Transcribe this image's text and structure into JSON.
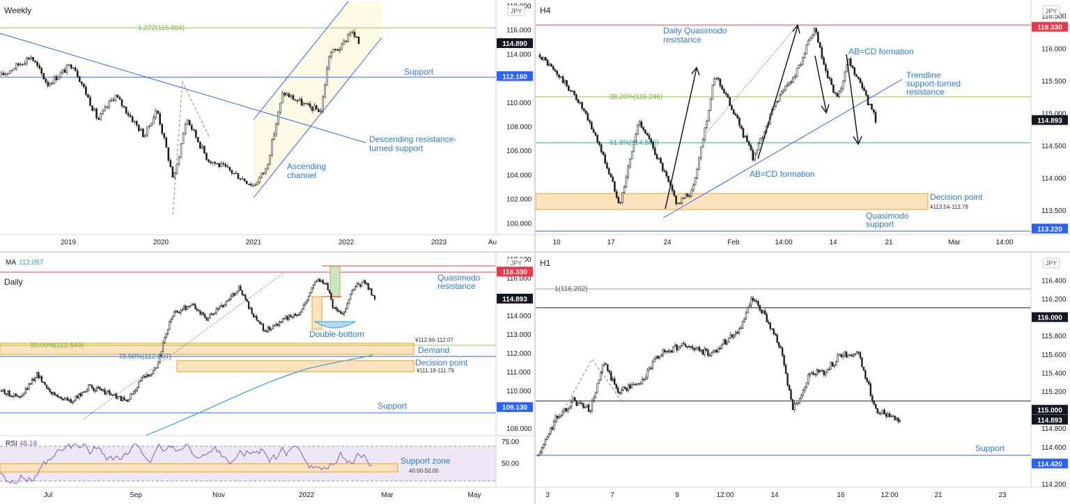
{
  "colors": {
    "candle_bull": "#ffffff",
    "candle_bear": "#1e1e1e",
    "wick": "#1e1e1e",
    "blue": "#2962ff",
    "label_blue": "#2b7bd0",
    "green_fib": "#8bc34a",
    "teal_fib": "#26a69a",
    "red": "#f23645",
    "zone_fill": "#fde3c0",
    "zone_stroke": "#f39c12",
    "channel_fill": "#fffbe6",
    "rsi_line": "#7e57c2",
    "rsi_fill": "#ede7f6",
    "price_tag_dark": "#131722"
  },
  "chart_data": [
    {
      "id": "weekly",
      "type": "candlestick",
      "title": "Weekly",
      "currency": "JPY",
      "x_ticks": [
        "2019",
        "2020",
        "2021",
        "2022",
        "2023",
        "Au"
      ],
      "y_ticks": [
        "118.000",
        "116.000",
        "114.000",
        "112.000",
        "110.000",
        "108.000",
        "106.000",
        "104.000",
        "102.000",
        "100.000"
      ],
      "ylim": [
        99.5,
        118.0
      ],
      "price_tags": [
        {
          "label": "114.890",
          "value": 114.89,
          "style": "dark"
        },
        {
          "label": "112.160",
          "value": 112.16,
          "style": "blue"
        }
      ],
      "levels": [
        {
          "label": "1.272(116.094)",
          "value": 116.094,
          "color": "green"
        },
        {
          "label": "Support",
          "value": 112.16,
          "color": "blue"
        }
      ],
      "annotations": [
        "Descending resistance-",
        "turned support",
        "Ascending",
        "channel"
      ],
      "series": {
        "start": 112.2,
        "end": 114.89,
        "points": [
          [
            0,
            112.2
          ],
          [
            14,
            113.8
          ],
          [
            22,
            111.5
          ],
          [
            34,
            113.2
          ],
          [
            46,
            108.5
          ],
          [
            54,
            110.6
          ],
          [
            68,
            107.2
          ],
          [
            74,
            109.4
          ],
          [
            82,
            103.5
          ],
          [
            88,
            108.7
          ],
          [
            98,
            105.3
          ],
          [
            108,
            104.4
          ],
          [
            120,
            103.1
          ],
          [
            126,
            104.5
          ],
          [
            134,
            110.8
          ],
          [
            146,
            109.6
          ],
          [
            152,
            109.3
          ],
          [
            156,
            114.0
          ],
          [
            162,
            114.6
          ],
          [
            166,
            115.9
          ],
          [
            170,
            114.9
          ]
        ]
      }
    },
    {
      "id": "h4",
      "type": "candlestick",
      "title": "H4",
      "currency": "JPY",
      "x_ticks": [
        "10",
        "17",
        "24",
        "Feb",
        "14:00",
        "14",
        "21",
        "Mar",
        "14:00"
      ],
      "y_ticks": [
        "116.500",
        "116.000",
        "115.500",
        "115.000",
        "114.500",
        "114.000",
        "113.500"
      ],
      "ylim": [
        113.17,
        116.55
      ],
      "price_tags": [
        {
          "label": "116.330",
          "value": 116.33,
          "style": "red"
        },
        {
          "label": "114.893",
          "value": 114.893,
          "style": "dark"
        },
        {
          "label": "113.220",
          "value": 113.22,
          "style": "blue"
        }
      ],
      "levels": [
        {
          "label": "38.20%(115.246)",
          "value": 115.246,
          "color": "green"
        },
        {
          "label": "61.8%(114.566)",
          "value": 114.566,
          "color": "teal"
        }
      ],
      "zone": {
        "label": "Decision point",
        "range_label": "¥113.54-113.78",
        "low": 113.54,
        "high": 113.78
      },
      "annotations": [
        "Daily Quasimodo",
        "resistance",
        "AB=CD formation",
        "AB=CD formation",
        "Trendline",
        "support-turned",
        "resistance",
        "Quasimodo",
        "support"
      ],
      "series": {
        "start": 115.9,
        "end": 114.893,
        "points": [
          [
            0,
            115.9
          ],
          [
            12,
            115.5
          ],
          [
            20,
            115.2
          ],
          [
            30,
            114.6
          ],
          [
            42,
            113.6
          ],
          [
            52,
            114.9
          ],
          [
            62,
            114.3
          ],
          [
            72,
            113.6
          ],
          [
            80,
            113.8
          ],
          [
            92,
            115.6
          ],
          [
            102,
            115.0
          ],
          [
            112,
            114.3
          ],
          [
            124,
            115.2
          ],
          [
            134,
            115.6
          ],
          [
            144,
            116.3
          ],
          [
            150,
            115.6
          ],
          [
            156,
            115.2
          ],
          [
            162,
            115.8
          ],
          [
            170,
            115.3
          ],
          [
            176,
            114.9
          ]
        ]
      }
    },
    {
      "id": "daily",
      "type": "candlestick",
      "title": "Daily",
      "currency": "JPY",
      "indicator_label": "MA",
      "indicator_value": "112.057",
      "x_ticks": [
        "Jul",
        "Sep",
        "Nov",
        "2022",
        "Mar",
        "May"
      ],
      "y_ticks": [
        "117.000",
        "116.000",
        "115.000",
        "114.000",
        "113.000",
        "112.000",
        "111.000",
        "110.000",
        "109.000",
        "108.000"
      ],
      "ylim": [
        107.75,
        117.0
      ],
      "price_tags": [
        {
          "label": "116.330",
          "value": 116.33,
          "style": "red"
        },
        {
          "label": "114.893",
          "value": 114.893,
          "style": "dark"
        },
        {
          "label": "109.130",
          "value": 109.13,
          "style": "blue"
        }
      ],
      "levels": [
        {
          "label": "50.00%(112.549)",
          "value": 112.549,
          "color": "green"
        },
        {
          "label": "78.60%(112.007)",
          "value": 112.007,
          "color": "blue"
        },
        {
          "label": "Support",
          "value": 109.13,
          "color": "blue"
        }
      ],
      "zones": [
        {
          "label": "Demand",
          "range_label": "¥112.66-112.07",
          "low": 112.07,
          "high": 112.66
        },
        {
          "label": "Decision point",
          "range_label": "¥111.18-111.79",
          "low": 111.18,
          "high": 111.79
        }
      ],
      "annotations": [
        "Quasimodo",
        "resistance",
        "Double-bottom"
      ],
      "series": {
        "start": 110.0,
        "end": 114.893,
        "points": [
          [
            0,
            110.0
          ],
          [
            12,
            109.6
          ],
          [
            22,
            110.9
          ],
          [
            32,
            109.8
          ],
          [
            44,
            109.4
          ],
          [
            54,
            110.2
          ],
          [
            66,
            109.9
          ],
          [
            78,
            109.4
          ],
          [
            86,
            110.5
          ],
          [
            96,
            111.2
          ],
          [
            106,
            114.0
          ],
          [
            118,
            114.6
          ],
          [
            128,
            113.8
          ],
          [
            138,
            114.6
          ],
          [
            148,
            115.5
          ],
          [
            156,
            114.0
          ],
          [
            164,
            113.2
          ],
          [
            176,
            113.8
          ],
          [
            186,
            114.2
          ],
          [
            196,
            116.0
          ],
          [
            202,
            115.6
          ],
          [
            206,
            114.5
          ],
          [
            212,
            114.0
          ],
          [
            218,
            115.4
          ],
          [
            226,
            115.8
          ],
          [
            232,
            114.89
          ]
        ]
      },
      "rsi": {
        "label": "RSI",
        "value": "48.18",
        "ticks": [
          "75.00",
          "50.00"
        ],
        "zone": {
          "label": "Support zone",
          "range_label": "40.00-50.00",
          "low": 40,
          "high": 50
        }
      }
    },
    {
      "id": "h1",
      "type": "candlestick",
      "title": "H1",
      "currency": "JPY",
      "x_ticks": [
        "3",
        "7",
        "9",
        "12:00",
        "14",
        "16",
        "12:00",
        "21",
        "23"
      ],
      "y_ticks": [
        "116.400",
        "116.200",
        "116.000",
        "115.800",
        "115.600",
        "115.400",
        "115.200",
        "115.000",
        "114.800",
        "114.600",
        "114.400",
        "114.200"
      ],
      "ylim": [
        114.08,
        116.5
      ],
      "price_tags": [
        {
          "label": "116.000",
          "value": 116.0,
          "style": "dark"
        },
        {
          "label": "115.000",
          "value": 115.0,
          "style": "dark"
        },
        {
          "label": "114.893",
          "value": 114.893,
          "style": "dark"
        },
        {
          "label": "114.420",
          "value": 114.42,
          "style": "blue"
        }
      ],
      "levels": [
        {
          "label": "1(116.202)",
          "value": 116.202,
          "color": "gray"
        },
        {
          "label": "Support",
          "value": 114.42,
          "color": "blue"
        }
      ],
      "series": {
        "start": 114.5,
        "end": 114.893,
        "points": [
          [
            0,
            114.5
          ],
          [
            10,
            114.9
          ],
          [
            20,
            115.1
          ],
          [
            30,
            115.0
          ],
          [
            38,
            115.5
          ],
          [
            46,
            115.2
          ],
          [
            60,
            115.3
          ],
          [
            70,
            115.6
          ],
          [
            84,
            115.7
          ],
          [
            100,
            115.6
          ],
          [
            118,
            115.9
          ],
          [
            124,
            116.2
          ],
          [
            132,
            116.0
          ],
          [
            140,
            115.7
          ],
          [
            148,
            115.0
          ],
          [
            158,
            115.4
          ],
          [
            166,
            115.4
          ],
          [
            176,
            115.6
          ],
          [
            186,
            115.6
          ],
          [
            196,
            115.0
          ],
          [
            210,
            114.9
          ]
        ]
      }
    }
  ]
}
